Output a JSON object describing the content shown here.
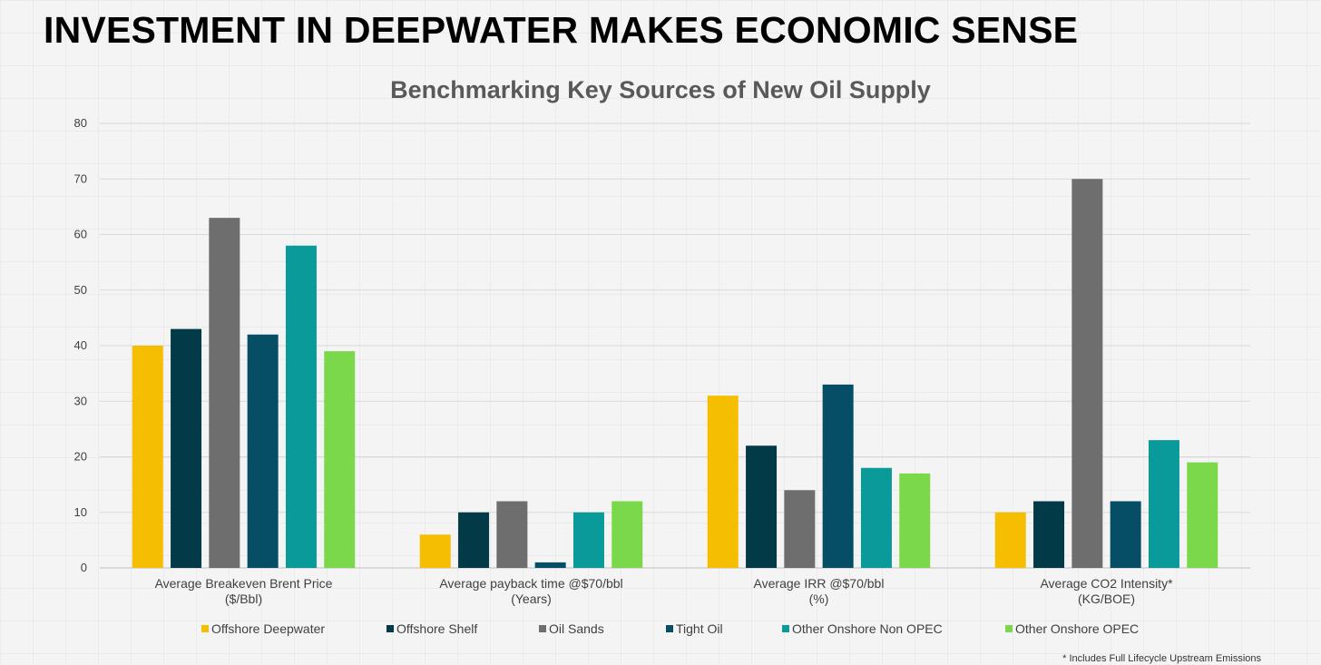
{
  "slide": {
    "title": "INVESTMENT IN DEEPWATER MAKES ECONOMIC SENSE",
    "footnote": "* Includes Full Lifecycle Upstream Emissions"
  },
  "chart_data": {
    "type": "bar",
    "title": "Benchmarking Key Sources of New Oil Supply",
    "xlabel": "",
    "ylabel": "",
    "ylim": [
      0,
      80
    ],
    "yticks": [
      0,
      10,
      20,
      30,
      40,
      50,
      60,
      70,
      80
    ],
    "grid": true,
    "legend_position": "bottom",
    "categories": [
      [
        "Average Breakeven Brent Price",
        "($/Bbl)"
      ],
      [
        "Average payback time @$70/bbl",
        "(Years)"
      ],
      [
        "Average IRR @$70/bbl",
        "(%)"
      ],
      [
        "Average CO2 Intensity*",
        "(KG/BOE)"
      ]
    ],
    "series": [
      {
        "name": "Offshore Deepwater",
        "color": "#f5be00",
        "values": [
          40,
          6,
          31,
          10
        ]
      },
      {
        "name": "Offshore Shelf",
        "color": "#033a47",
        "values": [
          43,
          10,
          22,
          12
        ]
      },
      {
        "name": "Oil Sands",
        "color": "#6e6e6e",
        "values": [
          63,
          12,
          14,
          70
        ]
      },
      {
        "name": "Tight Oil",
        "color": "#064d66",
        "values": [
          42,
          1,
          33,
          12
        ]
      },
      {
        "name": "Other Onshore Non OPEC",
        "color": "#0a9a9a",
        "values": [
          58,
          10,
          18,
          23
        ]
      },
      {
        "name": "Other Onshore OPEC",
        "color": "#7ad84a",
        "values": [
          39,
          12,
          17,
          19
        ]
      }
    ]
  }
}
